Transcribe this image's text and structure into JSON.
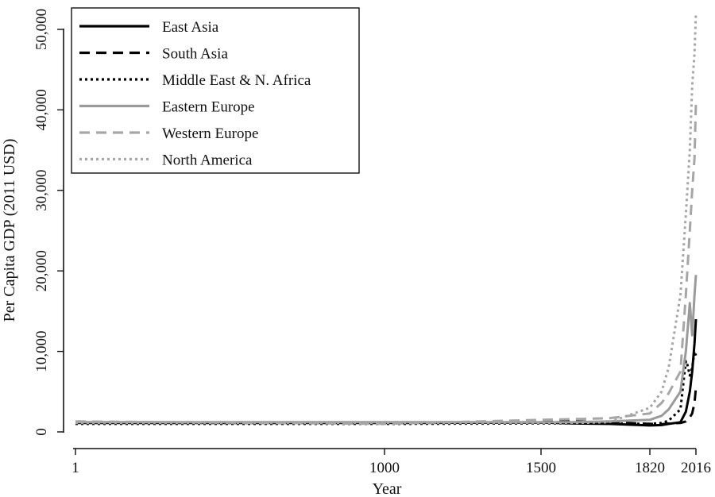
{
  "chart_data": {
    "type": "line",
    "xlabel": "Year",
    "ylabel": "Per Capita GDP (2011 USD)",
    "x_ticks": [
      "1",
      "1000",
      "1500",
      "1820",
      "2016"
    ],
    "y_ticks": [
      "0",
      "10,000",
      "20,000",
      "30,000",
      "40,000",
      "50,000"
    ],
    "x_tick_years": [
      1,
      1000,
      1500,
      1820,
      2016
    ],
    "ylim": [
      0,
      53000
    ],
    "grid": false,
    "legend_position": "top-left",
    "series": [
      {
        "name": "East Asia",
        "color": "#000000",
        "dash": "solid",
        "points": [
          [
            1,
            1100
          ],
          [
            1000,
            1100
          ],
          [
            1500,
            1150
          ],
          [
            1600,
            1050
          ],
          [
            1700,
            1000
          ],
          [
            1820,
            800
          ],
          [
            1870,
            850
          ],
          [
            1900,
            1000
          ],
          [
            1950,
            1200
          ],
          [
            1973,
            2500
          ],
          [
            1990,
            5000
          ],
          [
            2000,
            7500
          ],
          [
            2010,
            11000
          ],
          [
            2016,
            14000
          ]
        ]
      },
      {
        "name": "South Asia",
        "color": "#000000",
        "dash": "long",
        "points": [
          [
            1,
            1200
          ],
          [
            1000,
            1150
          ],
          [
            1500,
            1250
          ],
          [
            1600,
            1300
          ],
          [
            1700,
            1200
          ],
          [
            1820,
            1000
          ],
          [
            1870,
            950
          ],
          [
            1900,
            1050
          ],
          [
            1950,
            1100
          ],
          [
            1973,
            1300
          ],
          [
            1990,
            1800
          ],
          [
            2000,
            2300
          ],
          [
            2010,
            3600
          ],
          [
            2016,
            5500
          ]
        ]
      },
      {
        "name": "Middle East & N. Africa",
        "color": "#000000",
        "dash": "dotted",
        "points": [
          [
            1,
            1000
          ],
          [
            1000,
            1000
          ],
          [
            1500,
            1050
          ],
          [
            1600,
            1050
          ],
          [
            1700,
            1050
          ],
          [
            1820,
            1000
          ],
          [
            1870,
            1100
          ],
          [
            1900,
            1400
          ],
          [
            1950,
            2800
          ],
          [
            1973,
            8800
          ],
          [
            1980,
            8300
          ],
          [
            1990,
            7000
          ],
          [
            2000,
            8000
          ],
          [
            2010,
            10000
          ],
          [
            2016,
            9500
          ]
        ]
      },
      {
        "name": "Eastern Europe",
        "color": "#9a9a9a",
        "dash": "solid",
        "points": [
          [
            1,
            1200
          ],
          [
            1000,
            1200
          ],
          [
            1500,
            1200
          ],
          [
            1600,
            1200
          ],
          [
            1700,
            1300
          ],
          [
            1820,
            1500
          ],
          [
            1870,
            2000
          ],
          [
            1900,
            2800
          ],
          [
            1950,
            5000
          ],
          [
            1973,
            10000
          ],
          [
            1990,
            16000
          ],
          [
            2000,
            12000
          ],
          [
            2010,
            17000
          ],
          [
            2016,
            19500
          ]
        ]
      },
      {
        "name": "Western Europe",
        "color": "#a6a6a6",
        "dash": "long",
        "points": [
          [
            1,
            1300
          ],
          [
            1000,
            1000
          ],
          [
            1500,
            1500
          ],
          [
            1600,
            1600
          ],
          [
            1700,
            1700
          ],
          [
            1820,
            2300
          ],
          [
            1870,
            3600
          ],
          [
            1900,
            4800
          ],
          [
            1950,
            7500
          ],
          [
            1973,
            17000
          ],
          [
            1990,
            25000
          ],
          [
            2000,
            30000
          ],
          [
            2010,
            34000
          ],
          [
            2016,
            41000
          ]
        ]
      },
      {
        "name": "North America",
        "color": "#a6a6a6",
        "dash": "dotted",
        "points": [
          [
            1,
            1100
          ],
          [
            1000,
            1100
          ],
          [
            1500,
            1100
          ],
          [
            1600,
            1100
          ],
          [
            1700,
            1200
          ],
          [
            1820,
            3000
          ],
          [
            1870,
            5000
          ],
          [
            1900,
            8000
          ],
          [
            1950,
            17000
          ],
          [
            1973,
            27000
          ],
          [
            1990,
            35000
          ],
          [
            2000,
            43000
          ],
          [
            2010,
            47000
          ],
          [
            2016,
            52000
          ]
        ]
      }
    ]
  }
}
